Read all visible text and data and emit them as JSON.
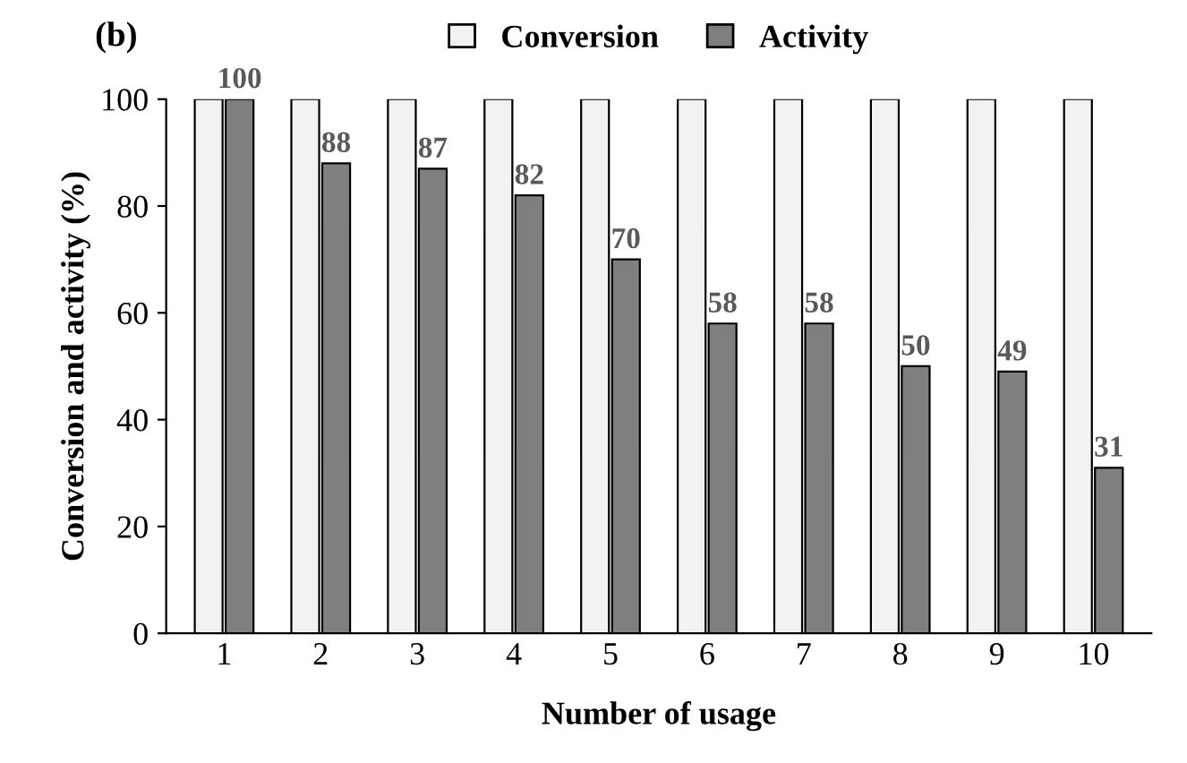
{
  "chart_data": {
    "type": "bar",
    "title": "(b)",
    "xlabel": "Number of usage",
    "ylabel": "Conversion and activity (%)",
    "categories": [
      "1",
      "2",
      "3",
      "4",
      "5",
      "6",
      "7",
      "8",
      "9",
      "10"
    ],
    "series": [
      {
        "name": "Conversion",
        "color": "#f2f2f2",
        "values": [
          100,
          100,
          100,
          100,
          100,
          100,
          100,
          100,
          100,
          100
        ]
      },
      {
        "name": "Activity",
        "color": "#7f7f7f",
        "values": [
          100,
          88,
          87,
          82,
          70,
          58,
          58,
          50,
          49,
          31
        ],
        "value_labels": [
          "100",
          "88",
          "87",
          "82",
          "70",
          "58",
          "58",
          "50",
          "49",
          "31"
        ]
      }
    ],
    "ylim": [
      0,
      100
    ],
    "yticks": [
      0,
      20,
      40,
      60,
      80,
      100
    ],
    "grid": false,
    "legend": "top"
  }
}
